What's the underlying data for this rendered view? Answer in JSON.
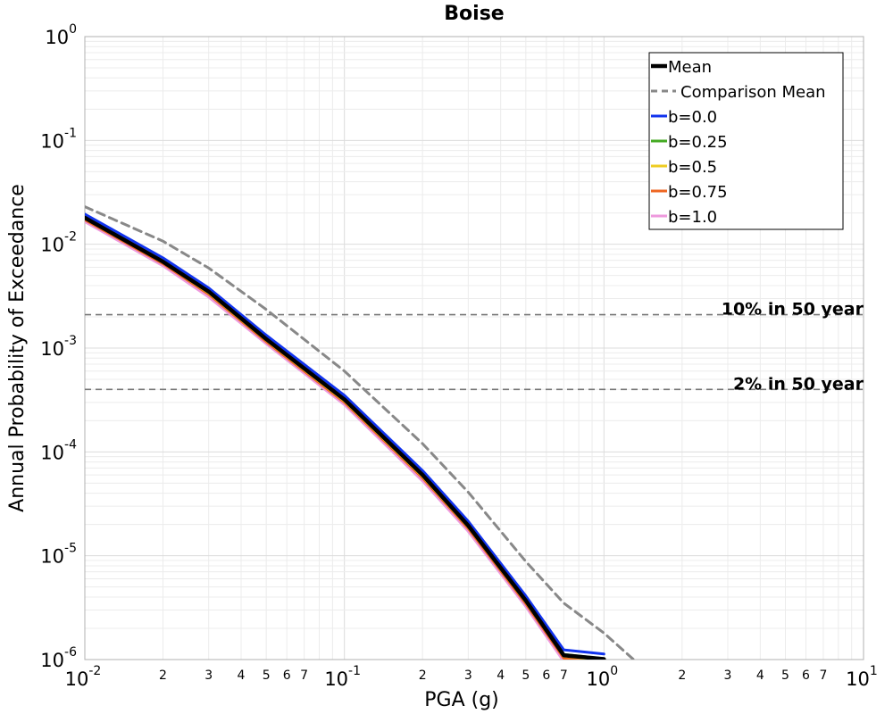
{
  "chart_data": {
    "type": "line",
    "title": "Boise",
    "xlabel": "PGA (g)",
    "ylabel": "Annual Probability of Exceedance",
    "x_scale": "log",
    "y_scale": "log",
    "xlim": [
      0.01,
      10
    ],
    "ylim": [
      1e-06,
      1
    ],
    "grid": true,
    "legend_position": "top-right",
    "x_major_ticks": [
      {
        "value": 0.01,
        "base": "10",
        "exp": "-2"
      },
      {
        "value": 0.1,
        "base": "10",
        "exp": "-1"
      },
      {
        "value": 1,
        "base": "10",
        "exp": "0"
      },
      {
        "value": 10,
        "base": "10",
        "exp": "1"
      }
    ],
    "y_major_ticks": [
      {
        "value": 1,
        "base": "10",
        "exp": "0"
      },
      {
        "value": 0.1,
        "base": "10",
        "exp": "-1"
      },
      {
        "value": 0.01,
        "base": "10",
        "exp": "-2"
      },
      {
        "value": 0.001,
        "base": "10",
        "exp": "-3"
      },
      {
        "value": 0.0001,
        "base": "10",
        "exp": "-4"
      },
      {
        "value": 1e-05,
        "base": "10",
        "exp": "-5"
      },
      {
        "value": 1e-06,
        "base": "10",
        "exp": "-6"
      }
    ],
    "x_minor_tick_labels": [
      "2",
      "3",
      "4",
      "5",
      "6",
      "7"
    ],
    "reference_lines": [
      {
        "label": "10% in 50 year",
        "y": 0.0021
      },
      {
        "label": "2% in 50 year",
        "y": 0.0004
      }
    ],
    "series": [
      {
        "name": "b=1.0",
        "color": "#ee99dd",
        "dash": "solid",
        "x": [
          0.01,
          0.02,
          0.03,
          0.05,
          0.1,
          0.2,
          0.3,
          0.5,
          0.7,
          1.0
        ],
        "y": [
          0.0165,
          0.0062,
          0.0031,
          0.0011,
          0.000285,
          5.25e-05,
          1.72e-05,
          3.25e-06,
          9.6e-07,
          8.5e-07
        ]
      },
      {
        "name": "b=0.75",
        "color": "#ee6622",
        "dash": "solid",
        "x": [
          0.01,
          0.02,
          0.03,
          0.05,
          0.1,
          0.2,
          0.3,
          0.5,
          0.7,
          1.0
        ],
        "y": [
          0.0172,
          0.0065,
          0.0033,
          0.00115,
          0.0003,
          5.6e-05,
          1.83e-05,
          3.45e-06,
          1.03e-06,
          9.3e-07
        ]
      },
      {
        "name": "b=0.5",
        "color": "#eecc22",
        "dash": "solid",
        "x": [
          0.01,
          0.02,
          0.03,
          0.05,
          0.1,
          0.2,
          0.3,
          0.5,
          0.7,
          1.0
        ],
        "y": [
          0.0177,
          0.0067,
          0.0034,
          0.00119,
          0.00031,
          5.8e-05,
          1.9e-05,
          3.6e-06,
          1.08e-06,
          9.8e-07
        ]
      },
      {
        "name": "b=0.25",
        "color": "#44aa22",
        "dash": "solid",
        "x": [
          0.01,
          0.02,
          0.03,
          0.05,
          0.1,
          0.2,
          0.3,
          0.5,
          0.7,
          1.0
        ],
        "y": [
          0.0182,
          0.0069,
          0.0035,
          0.00123,
          0.00032,
          6e-05,
          1.97e-05,
          3.7e-06,
          1.12e-06,
          1.02e-06
        ]
      },
      {
        "name": "b=0.0",
        "color": "#1133ee",
        "dash": "solid",
        "x": [
          0.01,
          0.02,
          0.03,
          0.05,
          0.1,
          0.2,
          0.3,
          0.5,
          0.7,
          1.0
        ],
        "y": [
          0.0195,
          0.0074,
          0.0038,
          0.00133,
          0.00035,
          6.6e-05,
          2.15e-05,
          4.1e-06,
          1.24e-06,
          1.13e-06
        ]
      },
      {
        "name": "Mean",
        "color": "#000000",
        "dash": "solid",
        "x": [
          0.01,
          0.02,
          0.03,
          0.05,
          0.1,
          0.2,
          0.3,
          0.5,
          0.7,
          1.0
        ],
        "y": [
          0.018,
          0.0068,
          0.0035,
          0.00122,
          0.00032,
          6e-05,
          1.95e-05,
          3.7e-06,
          1.1e-06,
          1.01e-06
        ]
      },
      {
        "name": "Comparison Mean",
        "color": "#888888",
        "dash": "dashed",
        "x": [
          0.01,
          0.02,
          0.03,
          0.05,
          0.1,
          0.2,
          0.3,
          0.5,
          0.7,
          1.0,
          1.3
        ],
        "y": [
          0.023,
          0.0107,
          0.0059,
          0.00235,
          0.0006,
          0.00012,
          4.1e-05,
          8.8e-06,
          3.5e-06,
          1.8e-06,
          1e-06
        ]
      }
    ],
    "legend_order": [
      "Mean",
      "Comparison Mean",
      "b=0.0",
      "b=0.25",
      "b=0.5",
      "b=0.75",
      "b=1.0"
    ]
  }
}
